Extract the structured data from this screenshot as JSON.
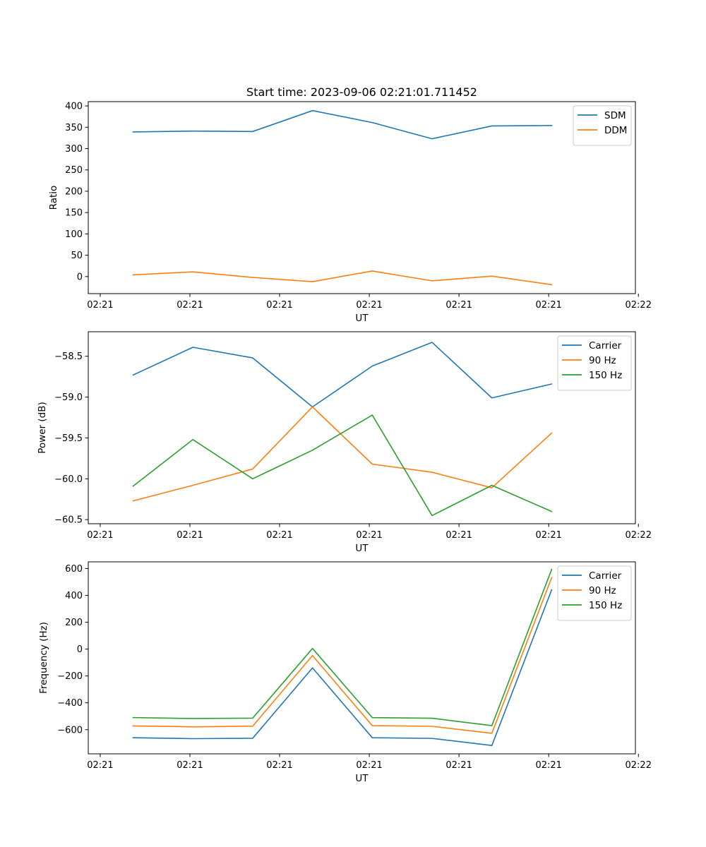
{
  "figure_title": "Start time: 2023-09-06 02:21:01.711452",
  "colors": {
    "blue": "#1f77b4",
    "orange": "#ff7f0e",
    "green": "#2ca02c"
  },
  "chart_data": [
    {
      "type": "line",
      "title": "Start time: 2023-09-06 02:21:01.711452",
      "xlabel": "UT",
      "ylabel": "Ratio",
      "x": [
        1,
        2,
        3,
        4,
        5,
        6,
        7,
        8
      ],
      "xlim": [
        0.25,
        9.4
      ],
      "xticks": [
        0.45,
        1.95,
        3.45,
        4.95,
        6.45,
        7.95,
        9.45
      ],
      "xtick_labels": [
        "02:21",
        "02:21",
        "02:21",
        "02:21",
        "02:21",
        "02:21",
        "02:22"
      ],
      "ylim": [
        -40,
        410
      ],
      "yticks": [
        0,
        50,
        100,
        150,
        200,
        250,
        300,
        350,
        400
      ],
      "ytick_labels": [
        "0",
        "50",
        "100",
        "150",
        "200",
        "250",
        "300",
        "350",
        "400"
      ],
      "legend": "top-right",
      "series": [
        {
          "name": "SDM",
          "color": "#1f77b4",
          "values": [
            339,
            341,
            340,
            389,
            361,
            323,
            353,
            354
          ]
        },
        {
          "name": "DDM",
          "color": "#ff7f0e",
          "values": [
            4,
            11,
            -2,
            -12,
            13,
            -10,
            1,
            -19
          ]
        }
      ]
    },
    {
      "type": "line",
      "title": "",
      "xlabel": "UT",
      "ylabel": "Power (dB)",
      "x": [
        1,
        2,
        3,
        4,
        5,
        6,
        7,
        8
      ],
      "xlim": [
        0.25,
        9.4
      ],
      "xticks": [
        0.45,
        1.95,
        3.45,
        4.95,
        6.45,
        7.95,
        9.45
      ],
      "xtick_labels": [
        "02:21",
        "02:21",
        "02:21",
        "02:21",
        "02:21",
        "02:21",
        "02:22"
      ],
      "ylim": [
        -60.55,
        -58.2
      ],
      "yticks": [
        -60.5,
        -60.0,
        -59.5,
        -59.0,
        -58.5
      ],
      "ytick_labels": [
        "−60.5",
        "−60.0",
        "−59.5",
        "−59.0",
        "−58.5"
      ],
      "legend": "top-right",
      "series": [
        {
          "name": "Carrier",
          "color": "#1f77b4",
          "values": [
            -58.73,
            -58.39,
            -58.52,
            -59.12,
            -58.62,
            -58.33,
            -59.01,
            -58.84
          ]
        },
        {
          "name": "90 Hz",
          "color": "#ff7f0e",
          "values": [
            -60.27,
            -60.08,
            -59.88,
            -59.12,
            -59.82,
            -59.92,
            -60.11,
            -59.44
          ]
        },
        {
          "name": "150 Hz",
          "color": "#2ca02c",
          "values": [
            -60.09,
            -59.52,
            -60.0,
            -59.65,
            -59.22,
            -60.45,
            -60.08,
            -60.4
          ]
        }
      ]
    },
    {
      "type": "line",
      "title": "",
      "xlabel": "UT",
      "ylabel": "Frequency (Hz)",
      "x": [
        1,
        2,
        3,
        4,
        5,
        6,
        7,
        8
      ],
      "xlim": [
        0.25,
        9.4
      ],
      "xticks": [
        0.45,
        1.95,
        3.45,
        4.95,
        6.45,
        7.95,
        9.45
      ],
      "xtick_labels": [
        "02:21",
        "02:21",
        "02:21",
        "02:21",
        "02:21",
        "02:21",
        "02:22"
      ],
      "ylim": [
        -780,
        650
      ],
      "yticks": [
        -600,
        -400,
        -200,
        0,
        200,
        400,
        600
      ],
      "ytick_labels": [
        "−600",
        "−400",
        "−200",
        "0",
        "200",
        "400",
        "600"
      ],
      "legend": "top-right",
      "series": [
        {
          "name": "Carrier",
          "color": "#1f77b4",
          "values": [
            -660,
            -667,
            -664,
            -140,
            -660,
            -665,
            -718,
            442
          ]
        },
        {
          "name": "90 Hz",
          "color": "#ff7f0e",
          "values": [
            -572,
            -579,
            -574,
            -48,
            -570,
            -575,
            -627,
            533
          ]
        },
        {
          "name": "150 Hz",
          "color": "#2ca02c",
          "values": [
            -510,
            -517,
            -514,
            5,
            -510,
            -515,
            -570,
            594
          ]
        }
      ]
    }
  ]
}
